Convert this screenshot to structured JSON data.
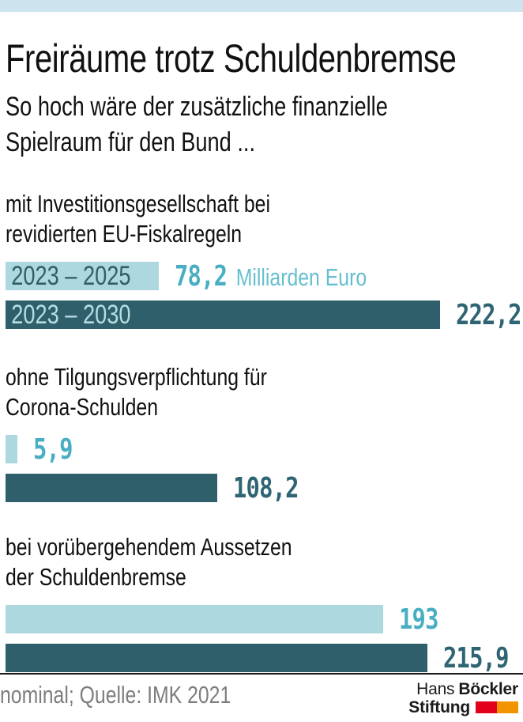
{
  "header": {
    "title": "Freiräume trotz Schuldenbremse",
    "subtitle_line1": "So hoch wäre der zusätzliche finanzielle",
    "subtitle_line2": "Spielraum für den Bund ..."
  },
  "chart_data": {
    "type": "bar",
    "orientation": "horizontal",
    "unit": "Milliarden Euro",
    "max_value": 222.2,
    "legend": [
      {
        "label": "2023 – 2025",
        "tone": "light"
      },
      {
        "label": "2023 – 2030",
        "tone": "dark"
      }
    ],
    "colors": {
      "top_strip": "#cde4ee",
      "light": "#aed8df",
      "dark": "#2e5f6b",
      "label_on_light": "#2e5f6b",
      "label_on_dark": "#b7dde3",
      "value_light": "#4aaec3",
      "value_dark": "#2e6473",
      "unit_text": "#66bfce",
      "note_text": "#7d7d7d"
    },
    "groups": [
      {
        "header_line1": "mit Investitionsgesellschaft bei",
        "header_line2": "revidierten EU-Fiskalregeln",
        "bars": [
          {
            "label": "2023 – 2025",
            "value": 78.2,
            "display": "78,2",
            "tone": "light"
          },
          {
            "label": "2023 – 2030",
            "value": 222.2,
            "display": "222,2",
            "tone": "dark"
          }
        ]
      },
      {
        "header_line1": "ohne Tilgungsverpflichtung für",
        "header_line2": "Corona-Schulden",
        "bars": [
          {
            "value": 5.9,
            "display": "5,9",
            "tone": "light"
          },
          {
            "value": 108.2,
            "display": "108,2",
            "tone": "dark"
          }
        ]
      },
      {
        "header_line1": "bei vorübergehendem Aussetzen",
        "header_line2": "der Schuldenbremse",
        "bars": [
          {
            "value": 193,
            "display": "193",
            "tone": "light"
          },
          {
            "value": 215.9,
            "display": "215,9",
            "tone": "dark"
          }
        ]
      }
    ]
  },
  "footer": {
    "note": "nominal; Quelle: IMK 2021",
    "logo": {
      "name_regular": "Hans",
      "name_bold": "Böckler",
      "line2": "Stiftung",
      "red": "#e2001a",
      "orange": "#f29400"
    }
  }
}
